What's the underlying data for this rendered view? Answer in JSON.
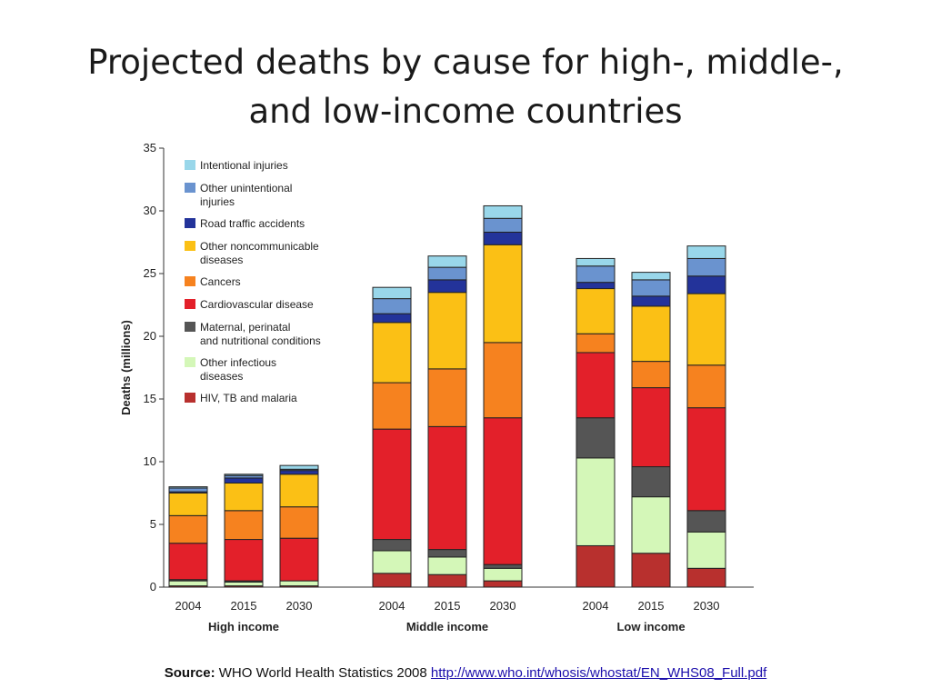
{
  "slide": {
    "title_line1": "Projected deaths by cause for high-, middle-,",
    "title_line2": "and low-income countries"
  },
  "source": {
    "label": "Source:",
    "text": "WHO World Health Statistics 2008",
    "link": "http://www.who.int/whosis/whostat/EN_WHS08_Full.pdf"
  },
  "chart_data": {
    "type": "bar",
    "stacked": true,
    "title": "",
    "ylabel": "Deaths (millions)",
    "xlabel": "",
    "ylim": [
      0,
      35
    ],
    "yticks": [
      0,
      5,
      10,
      15,
      20,
      25,
      30,
      35
    ],
    "legend_position": "top-left",
    "groups": [
      {
        "name": "High income",
        "categories": [
          "2004",
          "2015",
          "2030"
        ]
      },
      {
        "name": "Middle income",
        "categories": [
          "2004",
          "2015",
          "2030"
        ]
      },
      {
        "name": "Low income",
        "categories": [
          "2004",
          "2015",
          "2030"
        ]
      }
    ],
    "series": [
      {
        "name": "HIV, TB and malaria",
        "color": "#b8302e",
        "values": [
          0.1,
          0.1,
          0.1,
          1.1,
          1.0,
          0.5,
          3.3,
          2.7,
          1.5
        ]
      },
      {
        "name": "Other infectious\ndiseases",
        "color": "#d4f7b8",
        "values": [
          0.4,
          0.3,
          0.4,
          1.8,
          1.4,
          1.0,
          7.0,
          4.5,
          2.9
        ]
      },
      {
        "name": "Maternal, perinatal\nand nutritional conditions",
        "color": "#555555",
        "values": [
          0.1,
          0.1,
          0.0,
          0.9,
          0.6,
          0.3,
          3.2,
          2.4,
          1.7
        ]
      },
      {
        "name": "Cardiovascular disease",
        "color": "#e3202a",
        "values": [
          2.9,
          3.3,
          3.4,
          8.8,
          9.8,
          11.7,
          5.2,
          6.3,
          8.2
        ]
      },
      {
        "name": "Cancers",
        "color": "#f6821f",
        "values": [
          2.2,
          2.3,
          2.5,
          3.7,
          4.6,
          6.0,
          1.5,
          2.1,
          3.4
        ]
      },
      {
        "name": "Other noncommunicable\ndiseases",
        "color": "#fbc015",
        "values": [
          1.8,
          2.2,
          2.6,
          4.8,
          6.1,
          7.8,
          3.6,
          4.4,
          5.7
        ]
      },
      {
        "name": "Road traffic accidents",
        "color": "#23339a",
        "values": [
          0.1,
          0.4,
          0.3,
          0.7,
          1.0,
          1.0,
          0.5,
          0.8,
          1.4
        ]
      },
      {
        "name": "Other unintentional\ninjuries",
        "color": "#6a93cf",
        "values": [
          0.3,
          0.2,
          0.1,
          1.2,
          1.0,
          1.1,
          1.3,
          1.3,
          1.4
        ]
      },
      {
        "name": "Intentional injuries",
        "color": "#99d7ea",
        "values": [
          0.1,
          0.1,
          0.3,
          0.9,
          0.9,
          1.0,
          0.6,
          0.6,
          1.0
        ]
      }
    ]
  }
}
